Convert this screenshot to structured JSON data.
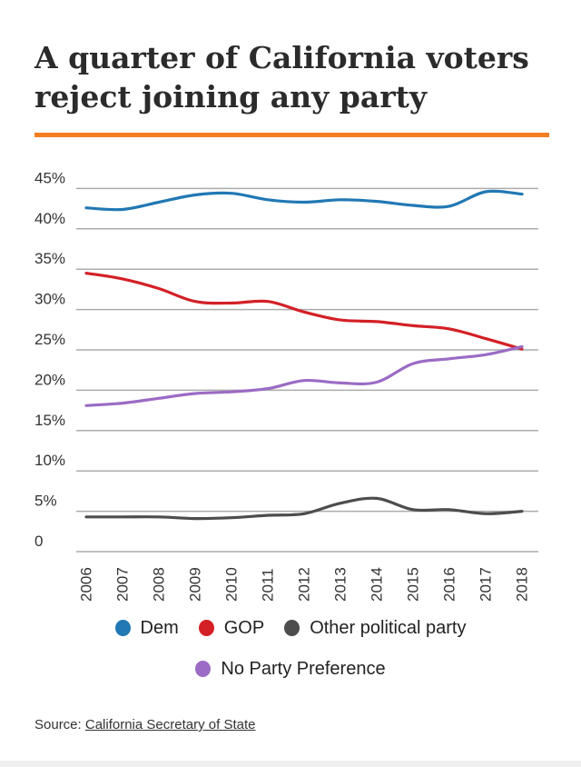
{
  "header": {
    "title_lines": [
      "A quarter of California voters",
      "reject joining any party"
    ],
    "accent_color": "#f47d20"
  },
  "chart_data": {
    "type": "line",
    "title": "A quarter of California voters reject joining any party",
    "x": [
      2006,
      2007,
      2008,
      2009,
      2010,
      2011,
      2012,
      2013,
      2014,
      2015,
      2016,
      2017,
      2018
    ],
    "series": [
      {
        "name": "Dem",
        "color": "#2178b4",
        "values": [
          42.6,
          42.4,
          43.3,
          44.2,
          44.4,
          43.6,
          43.3,
          43.6,
          43.4,
          42.9,
          42.8,
          44.6,
          44.3
        ]
      },
      {
        "name": "GOP",
        "color": "#d32026",
        "values": [
          34.5,
          33.8,
          32.6,
          31.0,
          30.8,
          31.0,
          29.7,
          28.7,
          28.5,
          28.0,
          27.6,
          26.4,
          25.1
        ]
      },
      {
        "name": "Other political party",
        "color": "#4d4d4d",
        "values": [
          4.3,
          4.3,
          4.3,
          4.1,
          4.2,
          4.5,
          4.7,
          6.0,
          6.6,
          5.2,
          5.2,
          4.7,
          5.0
        ]
      },
      {
        "name": "No Party Preference",
        "color": "#9b6bc5",
        "values": [
          18.1,
          18.4,
          19.0,
          19.6,
          19.8,
          20.2,
          21.2,
          20.9,
          21.0,
          23.3,
          23.9,
          24.4,
          25.4
        ]
      }
    ],
    "yticks": [
      45,
      40,
      35,
      30,
      25,
      20,
      15,
      10,
      5,
      0
    ],
    "ytick_labels": [
      "45%",
      "40%",
      "35%",
      "30%",
      "25%",
      "20%",
      "15%",
      "10%",
      "5%",
      "0"
    ],
    "xtick_labels": [
      "2006",
      "2007",
      "2008",
      "2009",
      "2010",
      "2011",
      "2012",
      "2013",
      "2014",
      "2015",
      "2016",
      "2017",
      "2018"
    ],
    "ylim": [
      0,
      47
    ],
    "xlabel": "",
    "ylabel": "",
    "grid": true,
    "legend_position": "bottom",
    "gridline_color": "#ababab"
  },
  "legend": {
    "rows": [
      [
        0,
        1,
        2
      ],
      [
        3
      ]
    ]
  },
  "source": {
    "prefix": "Source: ",
    "link_text": "California Secretary of State"
  }
}
